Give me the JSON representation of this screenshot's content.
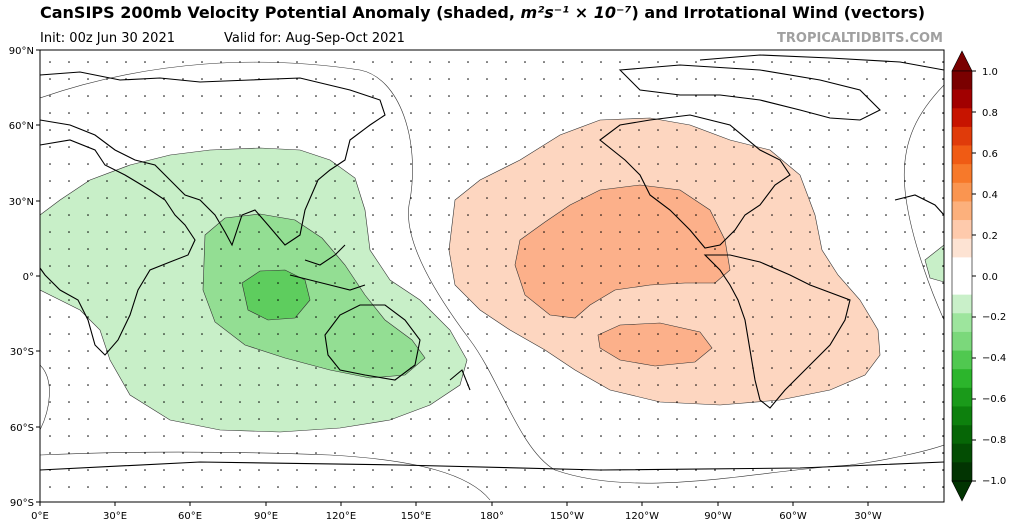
{
  "header": {
    "title_prefix": "CanSIPS 200mb Velocity Potential Anomaly (shaded, ",
    "title_unit": "m²s⁻¹ × 10⁻⁷",
    "title_suffix": ") and Irrotational Wind (vectors)",
    "init": "Init: 00z Jun 30 2021",
    "valid": "Valid for: Aug-Sep-Oct 2021",
    "credit": "TROPICALTIDBITS.COM"
  },
  "map": {
    "projection": "equirectangular",
    "lon_ticks": [
      "0°E",
      "30°E",
      "60°E",
      "90°E",
      "120°E",
      "150°E",
      "180°",
      "150°W",
      "120°W",
      "90°W",
      "60°W",
      "30°W"
    ],
    "lat_ticks": [
      "90°N",
      "60°N",
      "30°N",
      "0°",
      "30°S",
      "60°S",
      "90°S"
    ],
    "anomaly_regions": [
      {
        "name": "negative-center-indian-ocean",
        "sign": "negative",
        "peak": -0.4
      },
      {
        "name": "positive-center-east-pacific",
        "sign": "positive",
        "peak": 0.4
      }
    ]
  },
  "colorbar": {
    "labels": [
      "1.0",
      "0.8",
      "0.6",
      "0.4",
      "0.2",
      "0.0",
      "−0.2",
      "−0.4",
      "−0.6",
      "−0.8",
      "−1.0"
    ],
    "colors_top_to_bottom": [
      "#7a0000",
      "#a10000",
      "#c71400",
      "#e03b0a",
      "#f05b14",
      "#f7792a",
      "#fa9550",
      "#fcb07c",
      "#fecaac",
      "#fde3d3",
      "#ffffff",
      "#ffffff",
      "#c9f0c9",
      "#9de59d",
      "#7bd87b",
      "#50c850",
      "#2cb52c",
      "#1a9a1a",
      "#0d800d",
      "#066606",
      "#034d03",
      "#023402"
    ]
  }
}
